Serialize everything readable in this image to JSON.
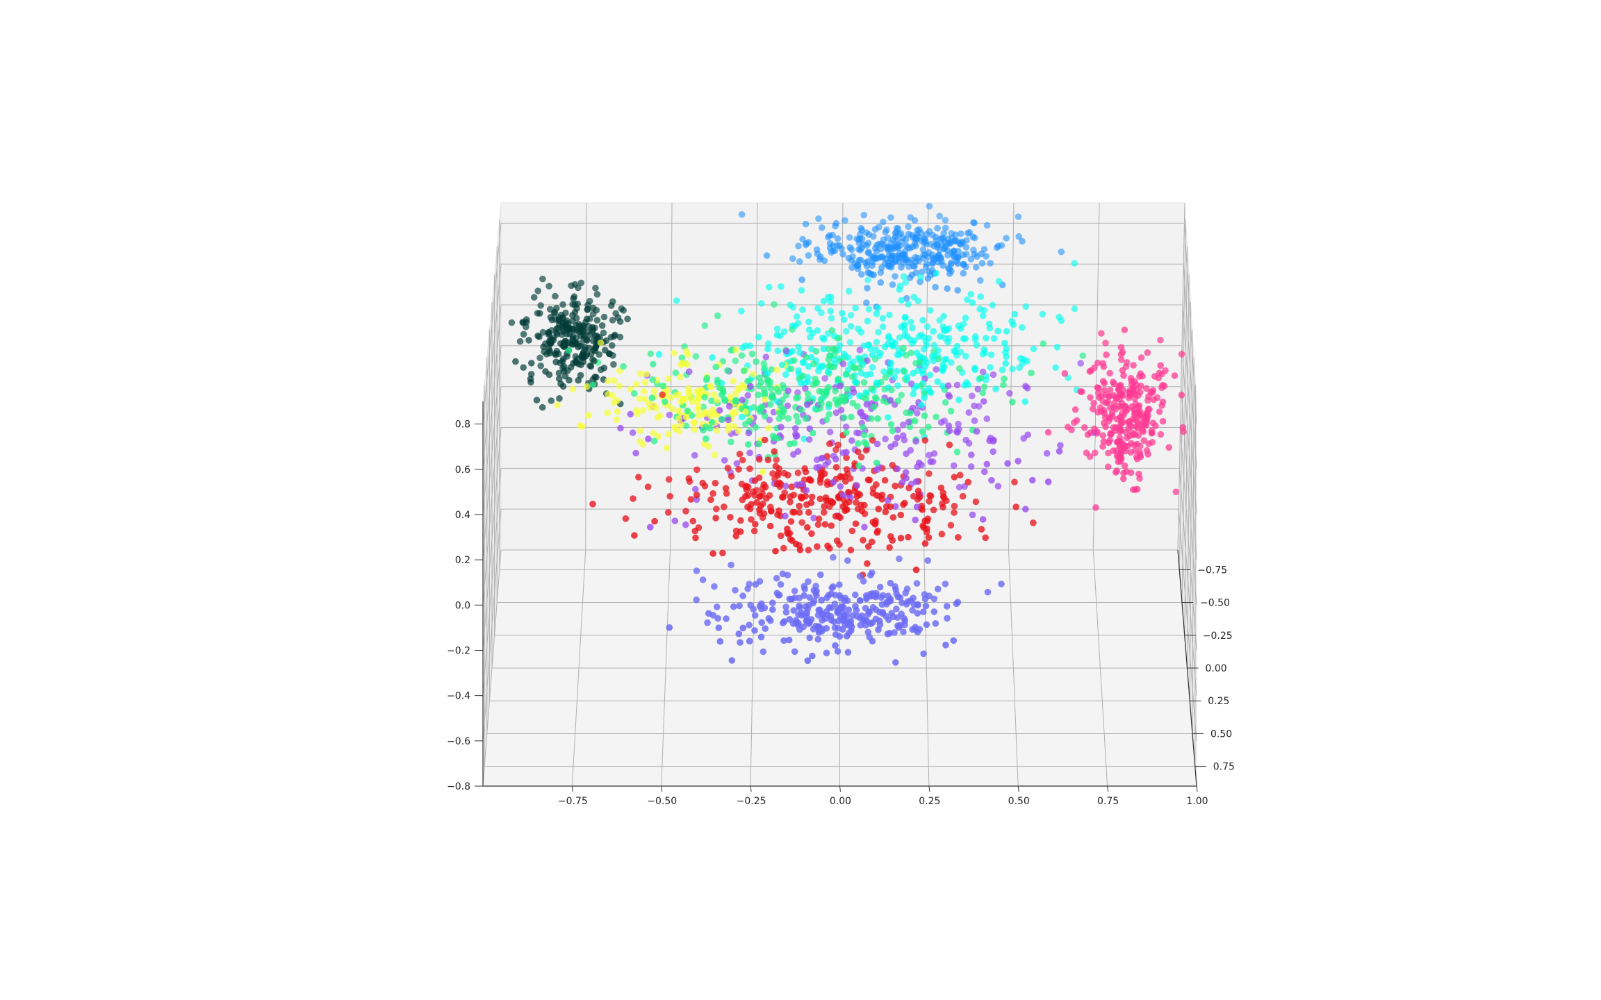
{
  "chart_data": {
    "type": "scatter",
    "projection": "3d",
    "title": "",
    "grid": true,
    "legend": "none",
    "axes": {
      "x": {
        "range": [
          -1.0,
          1.0
        ],
        "ticks": [
          -0.75,
          -0.5,
          -0.25,
          0.0,
          0.25,
          0.5,
          0.75,
          1.0
        ],
        "tick_labels": [
          "−0.75",
          "−0.50",
          "−0.25",
          "0.00",
          "0.25",
          "0.50",
          "0.75",
          "1.00"
        ]
      },
      "y": {
        "range": [
          -0.9,
          0.9
        ],
        "ticks": [
          -0.75,
          -0.5,
          -0.25,
          0.0,
          0.25,
          0.5,
          0.75
        ],
        "tick_labels": [
          "−0.75",
          "−0.50",
          "−0.25",
          "0.00",
          "0.25",
          "0.50",
          "0.75"
        ]
      },
      "z": {
        "range": [
          -0.8,
          0.9
        ],
        "ticks": [
          -0.8,
          -0.6,
          -0.4,
          -0.2,
          0.0,
          0.2,
          0.4,
          0.6,
          0.8
        ],
        "tick_labels": [
          "−0.8",
          "−0.6",
          "−0.4",
          "−0.2",
          "0.0",
          "0.2",
          "0.4",
          "0.6",
          "0.8"
        ]
      }
    },
    "clusters": [
      {
        "color": "#1e90ff",
        "center": [
          0.18,
          -0.7,
          0.78
        ],
        "spread": [
          0.14,
          0.1,
          0.06
        ],
        "count": 360
      },
      {
        "color": "#003b36",
        "center": [
          -0.78,
          -0.25,
          0.58
        ],
        "spread": [
          0.07,
          0.1,
          0.1
        ],
        "count": 260
      },
      {
        "color": "#ff3a93",
        "center": [
          0.82,
          0.05,
          0.4
        ],
        "spread": [
          0.06,
          0.08,
          0.14
        ],
        "count": 280
      },
      {
        "color": "#6b6bf5",
        "center": [
          0.0,
          0.5,
          -0.25
        ],
        "spread": [
          0.16,
          0.1,
          0.06
        ],
        "count": 300
      },
      {
        "color": "#e8141c",
        "center": [
          -0.05,
          0.25,
          0.12
        ],
        "spread": [
          0.22,
          0.12,
          0.1
        ],
        "count": 320
      },
      {
        "color": "#00ffee",
        "center": [
          0.15,
          -0.3,
          0.52
        ],
        "spread": [
          0.22,
          0.14,
          0.12
        ],
        "count": 330
      },
      {
        "color": "#22f08a",
        "center": [
          -0.1,
          -0.05,
          0.45
        ],
        "spread": [
          0.25,
          0.14,
          0.1
        ],
        "count": 280
      },
      {
        "color": "#f5ff3a",
        "center": [
          -0.45,
          -0.05,
          0.4
        ],
        "spread": [
          0.12,
          0.1,
          0.09
        ],
        "count": 160
      },
      {
        "color": "#9a4ef0",
        "center": [
          0.05,
          0.05,
          0.3
        ],
        "spread": [
          0.28,
          0.2,
          0.14
        ],
        "count": 240
      }
    ]
  }
}
